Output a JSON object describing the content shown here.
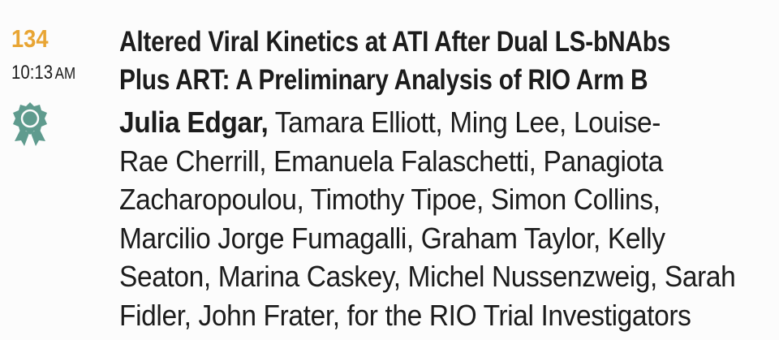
{
  "session": {
    "number": "134",
    "time": "10:13",
    "ampm": "AM",
    "award_icon": "award-ribbon-icon"
  },
  "colors": {
    "number": "#e8a534",
    "icon": "#5f9b8e",
    "text": "#1c1c1c"
  },
  "title_lines": [
    "Altered Viral Kinetics at ATI After Dual LS-bNAbs",
    "Plus ART: A Preliminary Analysis of RIO Arm B"
  ],
  "authors": {
    "presenter": "Julia Edgar,",
    "lines": [
      " Tamara Elliott, Ming Lee, Louise-",
      "Rae Cherrill, Emanuela Falaschetti, Panagiota",
      "Zacharopoulou, Timothy Tipoe, Simon Collins,",
      "Marcilio Jorge Fumagalli, Graham Taylor, Kelly",
      "Seaton, Marina Caskey, Michel Nussenzweig, Sarah",
      "Fidler, John Frater, for the RIO Trial Investigators"
    ]
  }
}
